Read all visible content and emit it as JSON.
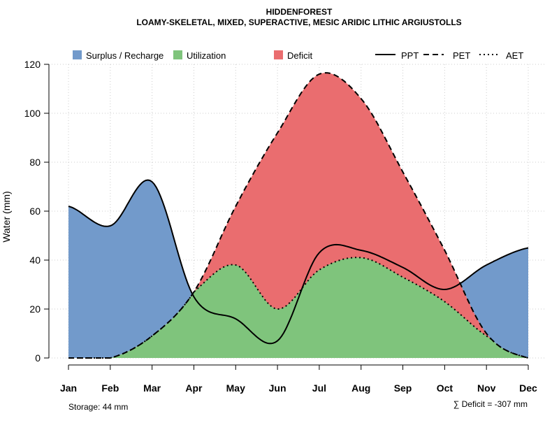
{
  "chart_data": {
    "type": "area",
    "title": "HIDDENFOREST",
    "subtitle": "LOAMY-SKELETAL, MIXED, SUPERACTIVE, MESIC ARIDIC LITHIC ARGIUSTOLLS",
    "xlabel": "",
    "ylabel": "Water (mm)",
    "ylim": [
      0,
      120
    ],
    "yticks": [
      "0",
      "20",
      "40",
      "60",
      "80",
      "100",
      "120"
    ],
    "categories": [
      "Jan",
      "Feb",
      "Mar",
      "Apr",
      "May",
      "Jun",
      "Jul",
      "Aug",
      "Sep",
      "Oct",
      "Nov",
      "Dec"
    ],
    "grid": true,
    "legend_position": "top",
    "legend": {
      "fills": [
        {
          "label": "Surplus / Recharge",
          "color": "#729ACB"
        },
        {
          "label": "Utilization",
          "color": "#7FC47C"
        },
        {
          "label": "Deficit",
          "color": "#EA6D6F"
        }
      ],
      "lines": [
        {
          "label": "PPT",
          "style": "solid"
        },
        {
          "label": "PET",
          "style": "dashed"
        },
        {
          "label": "AET",
          "style": "dotted"
        }
      ]
    },
    "series": [
      {
        "name": "PPT",
        "values": [
          62,
          54,
          72,
          25,
          16,
          7,
          43,
          44,
          37,
          28,
          38,
          45
        ]
      },
      {
        "name": "PET",
        "values": [
          0,
          0,
          9,
          27,
          62,
          92,
          116,
          106,
          76,
          44,
          10,
          0
        ]
      },
      {
        "name": "AET",
        "values": [
          0,
          0,
          9,
          27,
          38,
          20,
          36,
          41,
          33,
          23,
          9,
          0
        ]
      }
    ],
    "annotations": {
      "storage": "Storage: 44 mm",
      "deficit": "∑ Deficit = -307 mm"
    }
  }
}
